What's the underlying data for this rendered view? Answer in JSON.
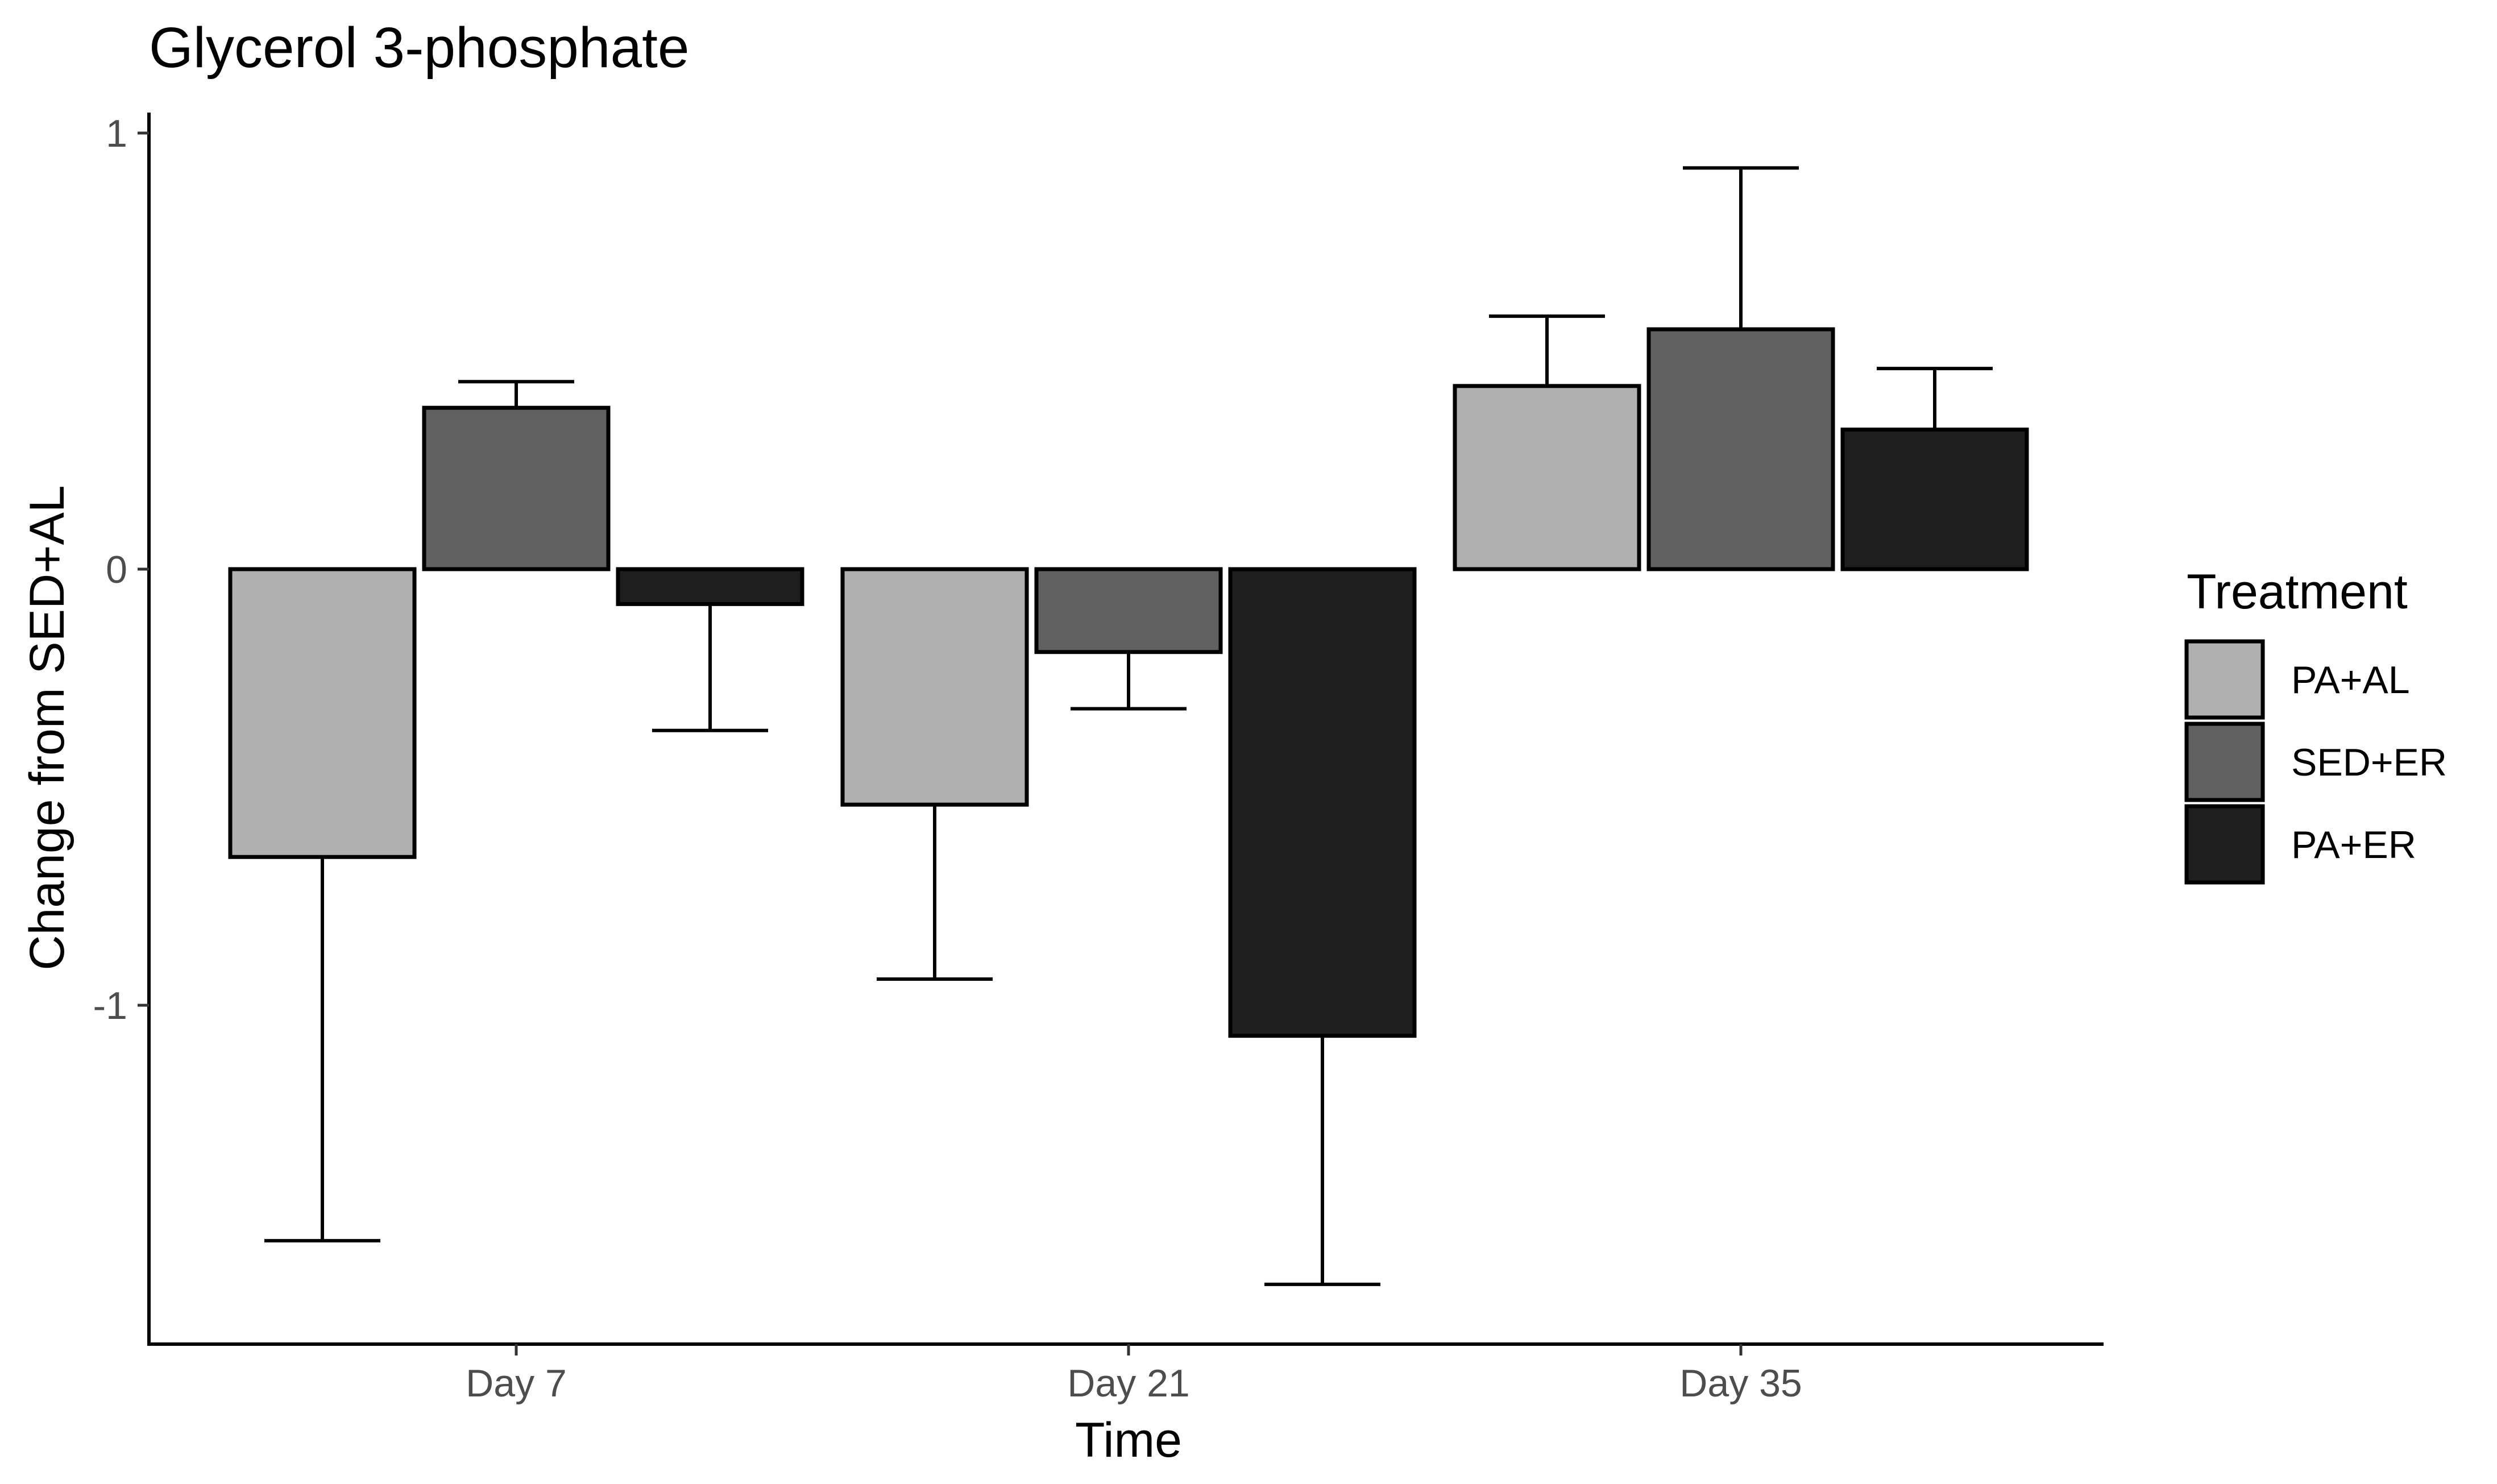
{
  "chart_data": {
    "type": "bar",
    "title": "Glycerol 3-phosphate",
    "xlabel": "Time",
    "ylabel": "Change from SED+AL",
    "categories": [
      "Day 7",
      "Day 21",
      "Day 35"
    ],
    "y_ticks": [
      {
        "value": 1,
        "label": "1"
      },
      {
        "value": 0,
        "label": "0"
      },
      {
        "value": -1,
        "label": "-1"
      }
    ],
    "ylim": [
      -1.78,
      1.05
    ],
    "grid": false,
    "legend": {
      "title": "Treatment",
      "position": "right"
    },
    "series": [
      {
        "name": "PA+AL",
        "color": "#b0b0b0",
        "values": [
          -0.66,
          -0.54,
          0.42
        ],
        "error_upper": [
          -0.66,
          -0.54,
          0.58
        ],
        "error_lower": [
          -1.54,
          -0.94,
          0.42
        ]
      },
      {
        "name": "SED+ER",
        "color": "#606060",
        "values": [
          0.37,
          -0.19,
          0.55
        ],
        "error_upper": [
          0.43,
          -0.19,
          0.92
        ],
        "error_lower": [
          0.37,
          -0.32,
          0.55
        ]
      },
      {
        "name": "PA+ER",
        "color": "#1e1e1e",
        "values": [
          -0.08,
          -1.07,
          0.32
        ],
        "error_upper": [
          -0.08,
          -1.07,
          0.46
        ],
        "error_lower": [
          -0.37,
          -1.64,
          0.32
        ]
      }
    ]
  }
}
